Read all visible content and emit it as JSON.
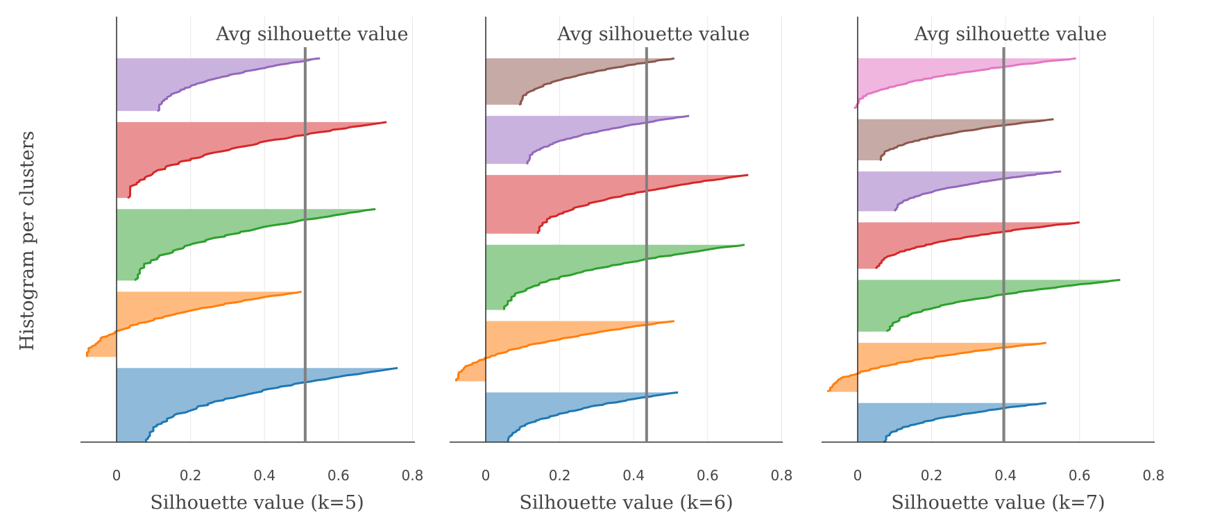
{
  "figure": {
    "ylabel": "Histogram per clusters"
  },
  "chart_data": [
    {
      "type": "area",
      "xlabel": "Silhouette value (k=5)",
      "annotation": "Avg silhouette value",
      "avg": 0.51,
      "xlim": [
        -0.1,
        0.81
      ],
      "xticks": [
        "0",
        "0.2",
        "0.4",
        "0.6",
        "0.8"
      ],
      "grid": true,
      "clusters": [
        {
          "color": "#1f77b4",
          "fill": "#8fbad9",
          "min": 0.08,
          "max": 0.76
        },
        {
          "color": "#ff7f0e",
          "fill": "#ffbb7f",
          "min": -0.08,
          "max": 0.5
        },
        {
          "color": "#2ca02c",
          "fill": "#95cf95",
          "min": 0.05,
          "max": 0.7
        },
        {
          "color": "#d62728",
          "fill": "#ea9293",
          "min": 0.03,
          "max": 0.73
        },
        {
          "color": "#9467bd",
          "fill": "#c9b3de",
          "min": 0.11,
          "max": 0.55
        }
      ]
    },
    {
      "type": "area",
      "xlabel": "Silhouette value (k=6)",
      "annotation": "Avg silhouette value",
      "avg": 0.435,
      "xlim": [
        -0.1,
        0.81
      ],
      "xticks": [
        "0",
        "0.2",
        "0.4",
        "0.6",
        "0.8"
      ],
      "grid": true,
      "clusters": [
        {
          "color": "#1f77b4",
          "fill": "#8fbad9",
          "min": 0.06,
          "max": 0.52
        },
        {
          "color": "#ff7f0e",
          "fill": "#ffbb7f",
          "min": -0.08,
          "max": 0.51
        },
        {
          "color": "#2ca02c",
          "fill": "#95cf95",
          "min": 0.05,
          "max": 0.7
        },
        {
          "color": "#d62728",
          "fill": "#ea9293",
          "min": 0.14,
          "max": 0.71
        },
        {
          "color": "#9467bd",
          "fill": "#c9b3de",
          "min": 0.11,
          "max": 0.55
        },
        {
          "color": "#8c564b",
          "fill": "#c5aaa5",
          "min": 0.09,
          "max": 0.51
        }
      ]
    },
    {
      "type": "area",
      "xlabel": "Silhouette value (k=7)",
      "annotation": "Avg silhouette value",
      "avg": 0.395,
      "xlim": [
        -0.1,
        0.81
      ],
      "xticks": [
        "0",
        "0.2",
        "0.4",
        "0.6",
        "0.8"
      ],
      "grid": true,
      "clusters": [
        {
          "color": "#1f77b4",
          "fill": "#8fbad9",
          "min": 0.07,
          "max": 0.51
        },
        {
          "color": "#ff7f0e",
          "fill": "#ffbb7f",
          "min": -0.08,
          "max": 0.51
        },
        {
          "color": "#2ca02c",
          "fill": "#95cf95",
          "min": 0.08,
          "max": 0.71
        },
        {
          "color": "#d62728",
          "fill": "#ea9293",
          "min": 0.05,
          "max": 0.6
        },
        {
          "color": "#9467bd",
          "fill": "#c9b3de",
          "min": 0.1,
          "max": 0.55
        },
        {
          "color": "#8c564b",
          "fill": "#c5aaa5",
          "min": 0.06,
          "max": 0.53
        },
        {
          "color": "#e377c2",
          "fill": "#f0b6e0",
          "min": -0.01,
          "max": 0.59
        }
      ]
    }
  ]
}
